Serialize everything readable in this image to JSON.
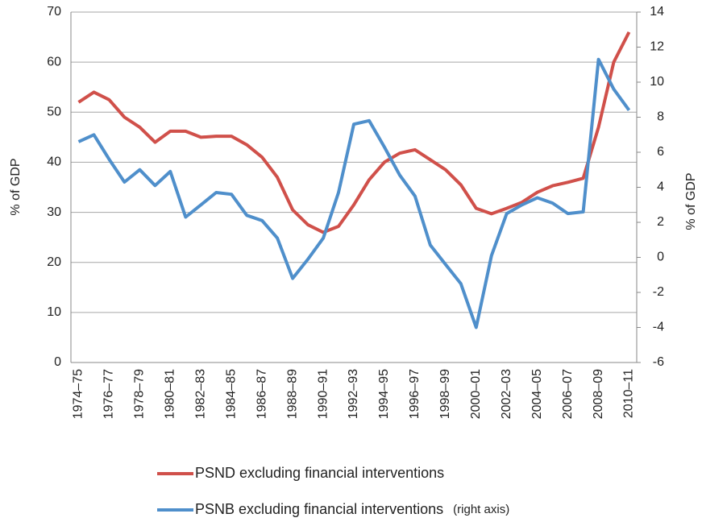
{
  "chart_data": {
    "type": "line",
    "categories": [
      "1974–75",
      null,
      "1976–77",
      null,
      "1978–79",
      null,
      "1980–81",
      null,
      "1982–83",
      null,
      "1984–85",
      null,
      "1986–87",
      null,
      "1988–89",
      null,
      "1990–91",
      null,
      "1992–93",
      null,
      "1994–95",
      null,
      "1996–97",
      null,
      "1998–99",
      null,
      "2000–01",
      null,
      "2002–03",
      null,
      "2004–05",
      null,
      "2006–07",
      null,
      "2008–09",
      null,
      "2010–11"
    ],
    "series": [
      {
        "name": "PSND excluding financial interventions",
        "color": "#d0504a",
        "values": [
          52,
          54,
          52.5,
          49,
          47,
          44,
          46.2,
          46.2,
          45,
          45.2,
          45.2,
          43.5,
          41,
          37,
          30.5,
          27.5,
          26,
          27.2,
          31.5,
          36.5,
          40,
          41.8,
          42.5,
          40.5,
          38.5,
          35.5,
          30.8,
          29.7,
          30.8,
          32,
          34,
          35.3,
          36,
          36.8,
          47,
          60,
          66
        ]
      },
      {
        "name": "PSNB excluding financial interventions",
        "color": "#4f8fcb",
        "axis": "y2",
        "values": [
          6.6,
          7.0,
          5.6,
          4.3,
          5.0,
          4.1,
          4.9,
          2.3,
          3.0,
          3.7,
          3.6,
          2.4,
          2.1,
          1.1,
          -1.2,
          -0.1,
          1.1,
          3.7,
          7.6,
          7.8,
          6.3,
          4.7,
          3.5,
          0.7,
          -0.4,
          -1.5,
          -4.0,
          0.1,
          2.5,
          3.0,
          3.4,
          3.1,
          2.5,
          2.6,
          11.3,
          9.6,
          8.4
        ]
      }
    ],
    "legend_note": "(right axis)",
    "ylabel": "% of GDP",
    "y2label": "% of GDP",
    "ylim": [
      0,
      70
    ],
    "yticks": [
      0,
      10,
      20,
      30,
      40,
      50,
      60,
      70
    ],
    "y2lim": [
      -6,
      14
    ],
    "y2ticks": [
      -6,
      -4,
      -2,
      0,
      2,
      4,
      6,
      8,
      10,
      12,
      14
    ],
    "grid": true
  }
}
